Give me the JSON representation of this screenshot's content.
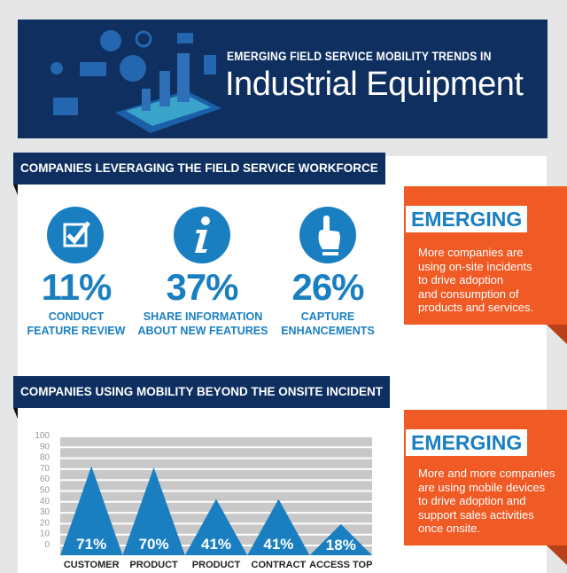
{
  "header": {
    "subtitle": "EMERGING FIELD SERVICE MOBILITY TRENDS IN",
    "title": "Industrial Equipment"
  },
  "section1": {
    "title": "COMPANIES LEVERAGING THE FIELD SERVICE WORKFORCE",
    "stats": [
      {
        "icon": "checkbox-icon",
        "value": "11%",
        "label1": "CONDUCT",
        "label2": "FEATURE REVIEW"
      },
      {
        "icon": "info-icon",
        "value": "37%",
        "label1": "SHARE INFORMATION",
        "label2": "ABOUT NEW FEATURES"
      },
      {
        "icon": "pointing-hand-icon",
        "value": "26%",
        "label1": "CAPTURE",
        "label2": "ENHANCEMENTS"
      }
    ]
  },
  "callout1": {
    "tag": "EMERGING",
    "lines": [
      "More companies are",
      "using on-site incidents",
      "to drive adoption",
      "and consumption of",
      "products and services."
    ]
  },
  "section2": {
    "title": "COMPANIES USING MOBILITY BEYOND THE ONSITE INCIDENT"
  },
  "callout2": {
    "tag": "EMERGING",
    "lines": [
      "More and more companies",
      "are using mobile devices",
      "to drive adoption and",
      "support sales activities",
      "once onsite."
    ]
  },
  "colors": {
    "navy": "#0e2f5f",
    "blue": "#1a7fc1",
    "orange": "#f05a24",
    "grid": "#c8c8c8"
  },
  "chart_data": {
    "type": "bar",
    "mark": "triangle",
    "categories": [
      "CUSTOMER",
      "PRODUCT",
      "PRODUCT",
      "CONTRACT",
      "ACCESS TOP"
    ],
    "values": [
      71,
      70,
      41,
      41,
      18
    ],
    "data_labels": [
      "71%",
      "70%",
      "41%",
      "41%",
      "18%"
    ],
    "yticks": [
      "100",
      "90",
      "80",
      "70",
      "60",
      "50",
      "40",
      "30",
      "20",
      "10",
      "0"
    ],
    "ylim": [
      0,
      100
    ],
    "grid": true
  }
}
